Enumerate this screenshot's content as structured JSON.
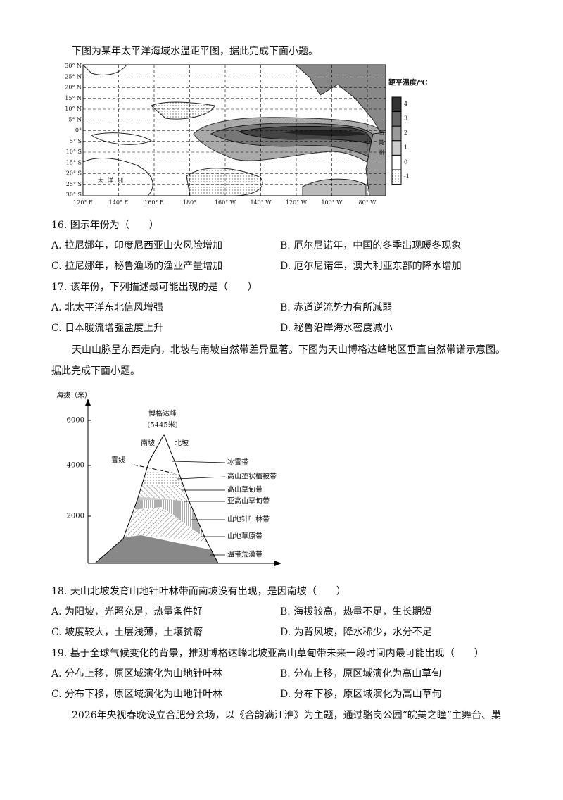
{
  "intro": "下图为某年太平洋海域水温距平图，据此完成下面小题。",
  "figure1": {
    "lat_labels": [
      "30° N",
      "25° N",
      "20° N",
      "15° N",
      "10° N",
      "5° N",
      "0°",
      "5° S",
      "10° S",
      "15° S",
      "20° S",
      "25° S",
      "30° S"
    ],
    "lon_labels": [
      "120° E",
      "140° E",
      "160° E",
      "180°",
      "160° W",
      "140° W",
      "120° W",
      "100° W",
      "80° W"
    ],
    "legend_title": "距平温度/℃",
    "legend_values": [
      "4",
      "3",
      "2",
      "1",
      "0",
      "-1"
    ],
    "south_america": "南美洲",
    "oceania": "大洋洲"
  },
  "questions": [
    {
      "stem": "16. 图示年份为（　　）",
      "options": [
        "A. 拉尼娜年，印度尼西亚山火风险增加",
        "B. 厄尔尼诺年，中国的冬季出现暖冬现象",
        "C. 拉尼娜年，秘鲁渔场的渔业产量增加",
        "D. 厄尔尼诺年，澳大利亚东部的降水增加"
      ]
    },
    {
      "stem": "17. 该年份，下列描述最可能出现的是（　　）",
      "options": [
        "A. 北太平洋东北信风增强",
        "B. 赤道逆流势力有所减弱",
        "C. 日本暖流增强盐度上升",
        "D. 秘鲁沿岸海水密度减小"
      ]
    }
  ],
  "passage2": [
    "天山山脉呈东西走向，北坡与南坡自然带差异显著。下图为天山博格达峰地区垂直自然带谱示意图。",
    "据此完成下面小题。"
  ],
  "figure2": {
    "y_axis_label": "海拔（米）",
    "ticks": [
      "6000",
      "4000",
      "2000"
    ],
    "peak_name": "博格达峰",
    "peak_height": "(5445米)",
    "south_slope": "南坡",
    "north_slope": "北坡",
    "snow_line": "雪线",
    "zones": [
      "冰雪带",
      "高山垫状植被带",
      "高山草甸带",
      "亚高山草甸带",
      "山地针叶林带",
      "山地草原带",
      "温带荒漠带"
    ]
  },
  "questions2": [
    {
      "stem": "18. 天山北坡发育山地针叶林带而南坡没有出现，是因南坡（　　）",
      "options": [
        "A. 为阳坡，光照充足，热量条件好",
        "B. 海拔较高，热量不足，生长期短",
        "C. 坡度较大，土层浅薄，土壤贫瘠",
        "D. 为背风坡，降水稀少，水分不足"
      ]
    },
    {
      "stem": "19. 基于全球气候变化的背景，推测博格达峰北坡亚高山草甸带未来一段时间内最可能出现（　　）",
      "options": [
        "A. 分布上移，原区域演化为山地针叶林",
        "B. 分布上移，原区域演化为高山草甸",
        "C. 分布下移，原区域演化为山地针叶林",
        "D. 分布下移，原区域演化为高山草甸"
      ]
    }
  ],
  "footer": "2026年央视春晚设立合肥分会场，以《合韵满江淮》为主题，通过骆岗公园“皖美之瞳”主舞台、巢"
}
